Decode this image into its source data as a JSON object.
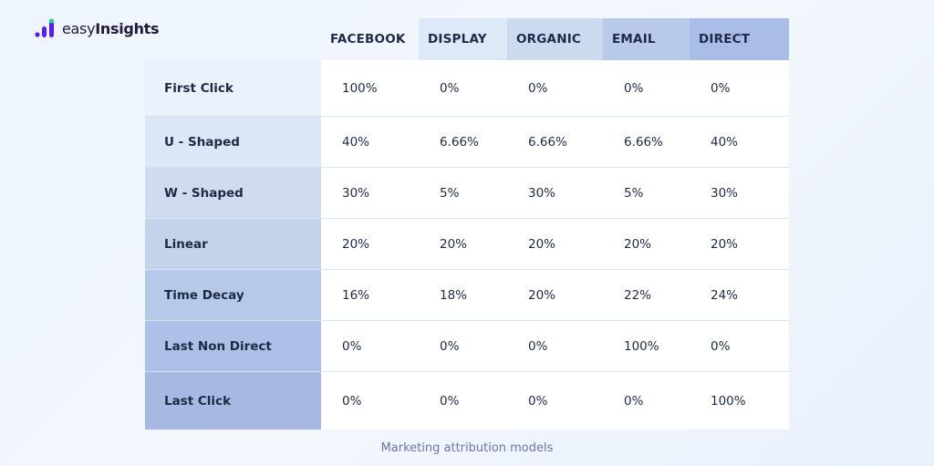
{
  "brand": {
    "name_light": "easy",
    "name_bold": "Insights",
    "colors": {
      "bars": "#5b1ee8",
      "accent": "#22d3a6"
    }
  },
  "chart_data": {
    "type": "table",
    "title": "",
    "columns": [
      "FACEBOOK",
      "DISPLAY",
      "ORGANIC",
      "EMAIL",
      "DIRECT"
    ],
    "rows": [
      {
        "label": "First Click",
        "values": [
          "100%",
          "0%",
          "0%",
          "0%",
          "0%"
        ]
      },
      {
        "label": "U - Shaped",
        "values": [
          "40%",
          "6.66%",
          "6.66%",
          "6.66%",
          "40%"
        ]
      },
      {
        "label": "W - Shaped",
        "values": [
          "30%",
          "5%",
          "30%",
          "5%",
          "30%"
        ]
      },
      {
        "label": "Linear",
        "values": [
          "20%",
          "20%",
          "20%",
          "20%",
          "20%"
        ]
      },
      {
        "label": "Time Decay",
        "values": [
          "16%",
          "18%",
          "20%",
          "22%",
          "24%"
        ]
      },
      {
        "label": "Last Non Direct",
        "values": [
          "0%",
          "0%",
          "0%",
          "100%",
          "0%"
        ]
      },
      {
        "label": "Last Click",
        "values": [
          "0%",
          "0%",
          "0%",
          "0%",
          "100%"
        ]
      }
    ],
    "header_colors": [
      "#eef5fd",
      "#dde9f7",
      "#cbdaee",
      "#b8cae8",
      "#a9bde6"
    ],
    "row_label_colors": [
      "#eaf3fd",
      "#dbe7f6",
      "#cfdcf0",
      "#c3d3ec",
      "#b7c9e9",
      "#adc0e7",
      "#a7b9e3"
    ]
  },
  "caption": "Marketing attribution models"
}
